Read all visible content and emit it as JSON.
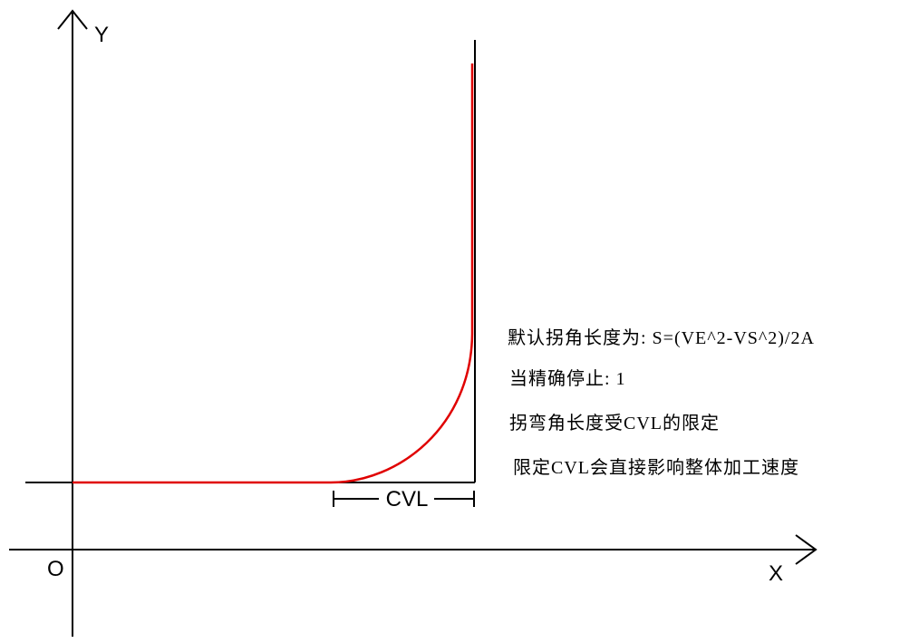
{
  "labels": {
    "y_axis": "Y",
    "x_axis": "X",
    "origin": "O",
    "cvl": "CVL"
  },
  "notes": [
    "默认拐角长度为:  S=(VE^2-VS^2)/2A",
    "当精确停止: 1",
    "拐弯角长度受CVL的限定",
    "限定CVL会直接影响整体加工速度"
  ],
  "colors": {
    "path": "#e00000",
    "axes": "#000000"
  }
}
